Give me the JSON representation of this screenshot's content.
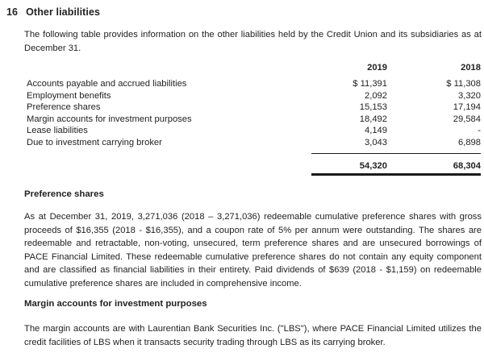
{
  "page": {
    "section_number": "16",
    "section_title": "Other liabilities",
    "intro": "The following table provides information on the other liabilities held by the Credit Union and its subsidiaries as at December 31.",
    "table": {
      "col_headers": [
        "2019",
        "2018"
      ],
      "rows": [
        {
          "label": "Accounts payable and accrued liabilities",
          "y2019": "$ 11,391",
          "y2018": "$ 11,308"
        },
        {
          "label": "Employment benefits",
          "y2019": "2,092",
          "y2018": "3,320"
        },
        {
          "label": "Preference shares",
          "y2019": "15,153",
          "y2018": "17,194"
        },
        {
          "label": "Margin accounts for investment purposes",
          "y2019": "18,492",
          "y2018": "29,584"
        },
        {
          "label": "Lease liabilities",
          "y2019": "4,149",
          "y2018": "-"
        },
        {
          "label": "Due to investment carrying broker",
          "y2019": "3,043",
          "y2018": "6,898"
        }
      ],
      "total": {
        "y2019": "54,320",
        "y2018": "68,304"
      }
    },
    "preference_shares": {
      "heading": "Preference shares",
      "body": "As at December 31, 2019, 3,271,036 (2018 – 3,271,036) redeemable cumulative preference shares with gross proceeds of $16,355 (2018 - $16,355), and a coupon rate of 5% per annum were outstanding. The shares are redeemable and retractable, non-voting, unsecured, term preference shares and are unsecured borrowings of PACE Financial Limited. These redeemable cumulative preference shares do not contain any equity component and are classified as financial liabilities in their entirety. Paid dividends of $639 (2018 - $1,159) on redeemable cumulative preference shares are included in comprehensive income."
    },
    "margin_accounts": {
      "heading": "Margin accounts for investment purposes",
      "body": "The margin accounts are with Laurentian Bank Securities Inc. (\"LBS\"), where PACE Financial Limited utilizes the credit facilities of LBS when it transacts security trading through LBS as its carrying broker."
    }
  }
}
